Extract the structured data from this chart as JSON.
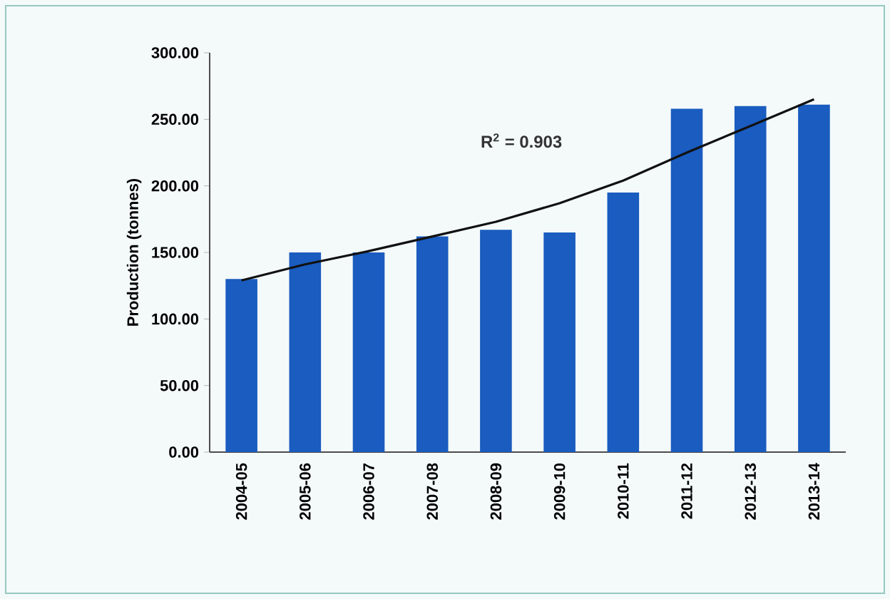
{
  "chart_data": {
    "type": "bar",
    "ylabel": "Production (tonnes)",
    "categories": [
      "2004-05",
      "2005-06",
      "2006-07",
      "2007-08",
      "2008-09",
      "2009-10",
      "2010-11",
      "2011-12",
      "2012-13",
      "2013-14"
    ],
    "series": [
      {
        "color": "#1a5cbf",
        "values": [
          130,
          150,
          150,
          162,
          167,
          165,
          195,
          258,
          260,
          261
        ]
      },
      {
        "type": "line",
        "color": "#111111",
        "marker": "none",
        "values": [
          129,
          141,
          151,
          162,
          173,
          187,
          204,
          225,
          245,
          265
        ]
      }
    ],
    "ylim": [
      0,
      300
    ],
    "yticks": [
      {
        "value": 0,
        "label": "0.00"
      },
      {
        "value": 50,
        "label": "50.00"
      },
      {
        "value": 100,
        "label": "100.00"
      },
      {
        "value": 150,
        "label": "150.00"
      },
      {
        "value": 200,
        "label": "200.00"
      },
      {
        "value": 250,
        "label": "250.00"
      },
      {
        "value": 300,
        "label": "300.00"
      }
    ],
    "grid": false,
    "annotations": [
      "R$^{2}$ = 0.903"
    ]
  }
}
